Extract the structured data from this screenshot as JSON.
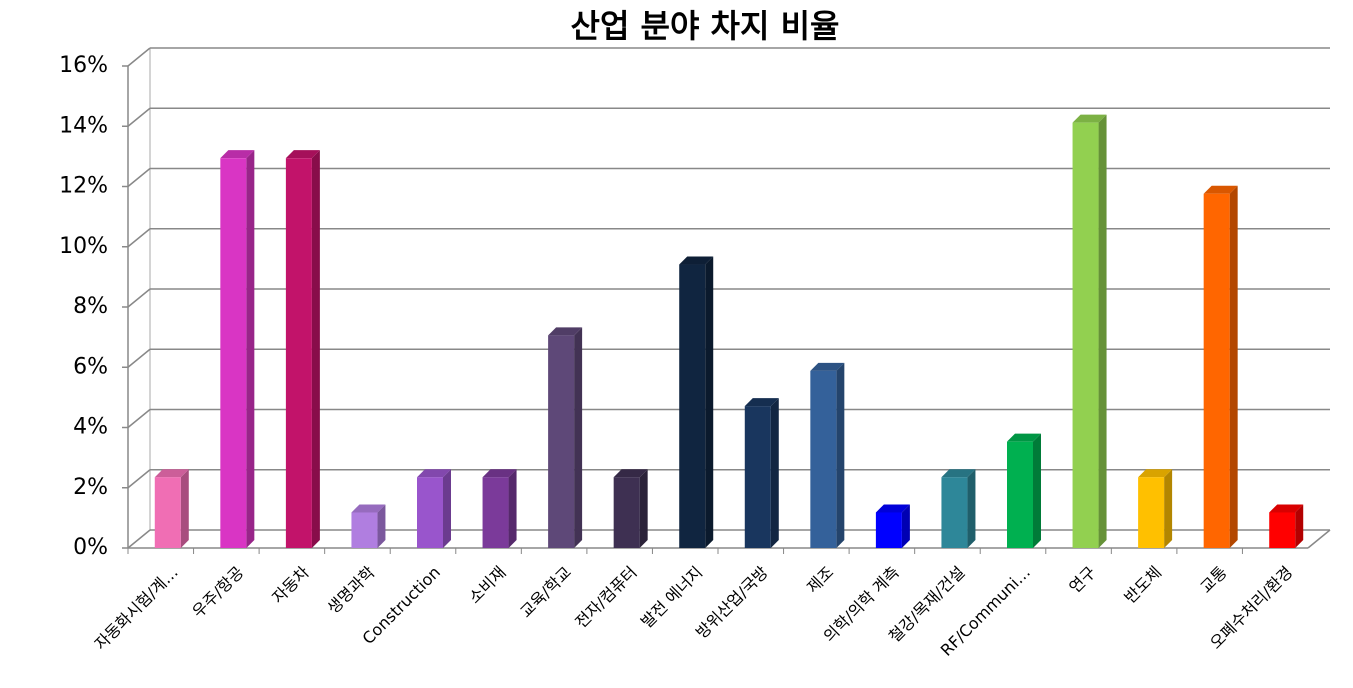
{
  "chart_data": {
    "type": "bar3d",
    "title": "산업 분야 차지 비율",
    "categories": [
      "자동화시험/계…",
      "우주/항공",
      "자동차",
      "생명과학",
      "Construction",
      "소비재",
      "교육/학교",
      "전자/컴퓨터",
      "발전 에너지",
      "방위산업/국방",
      "제조",
      "의학/의학 계측",
      "철강/목재/건설",
      "RF/Communi…",
      "연구",
      "반도체",
      "교통",
      "오폐수처리/환경"
    ],
    "values": [
      2.35,
      12.94,
      12.94,
      1.18,
      2.35,
      2.35,
      7.06,
      2.35,
      9.41,
      4.71,
      5.88,
      1.18,
      2.35,
      3.53,
      14.12,
      2.35,
      11.76,
      1.18
    ],
    "colors": [
      "#f06eb4",
      "#d935c4",
      "#c2136a",
      "#b07ee0",
      "#9955cc",
      "#7b3a9a",
      "#5e4878",
      "#3e3052",
      "#102540",
      "#19365e",
      "#34619a",
      "#0000ff",
      "#2e8799",
      "#00b050",
      "#92d050",
      "#ffc000",
      "#ff6600",
      "#ff0000"
    ],
    "ylim": [
      0,
      16
    ],
    "yticks": [
      {
        "value": 0,
        "label": "0%"
      },
      {
        "value": 2,
        "label": "2%"
      },
      {
        "value": 4,
        "label": "4%"
      },
      {
        "value": 6,
        "label": "6%"
      },
      {
        "value": 8,
        "label": "8%"
      },
      {
        "value": 10,
        "label": "10%"
      },
      {
        "value": 12,
        "label": "12%"
      },
      {
        "value": 14,
        "label": "14%"
      },
      {
        "value": 16,
        "label": "16%"
      }
    ],
    "grid": true
  }
}
